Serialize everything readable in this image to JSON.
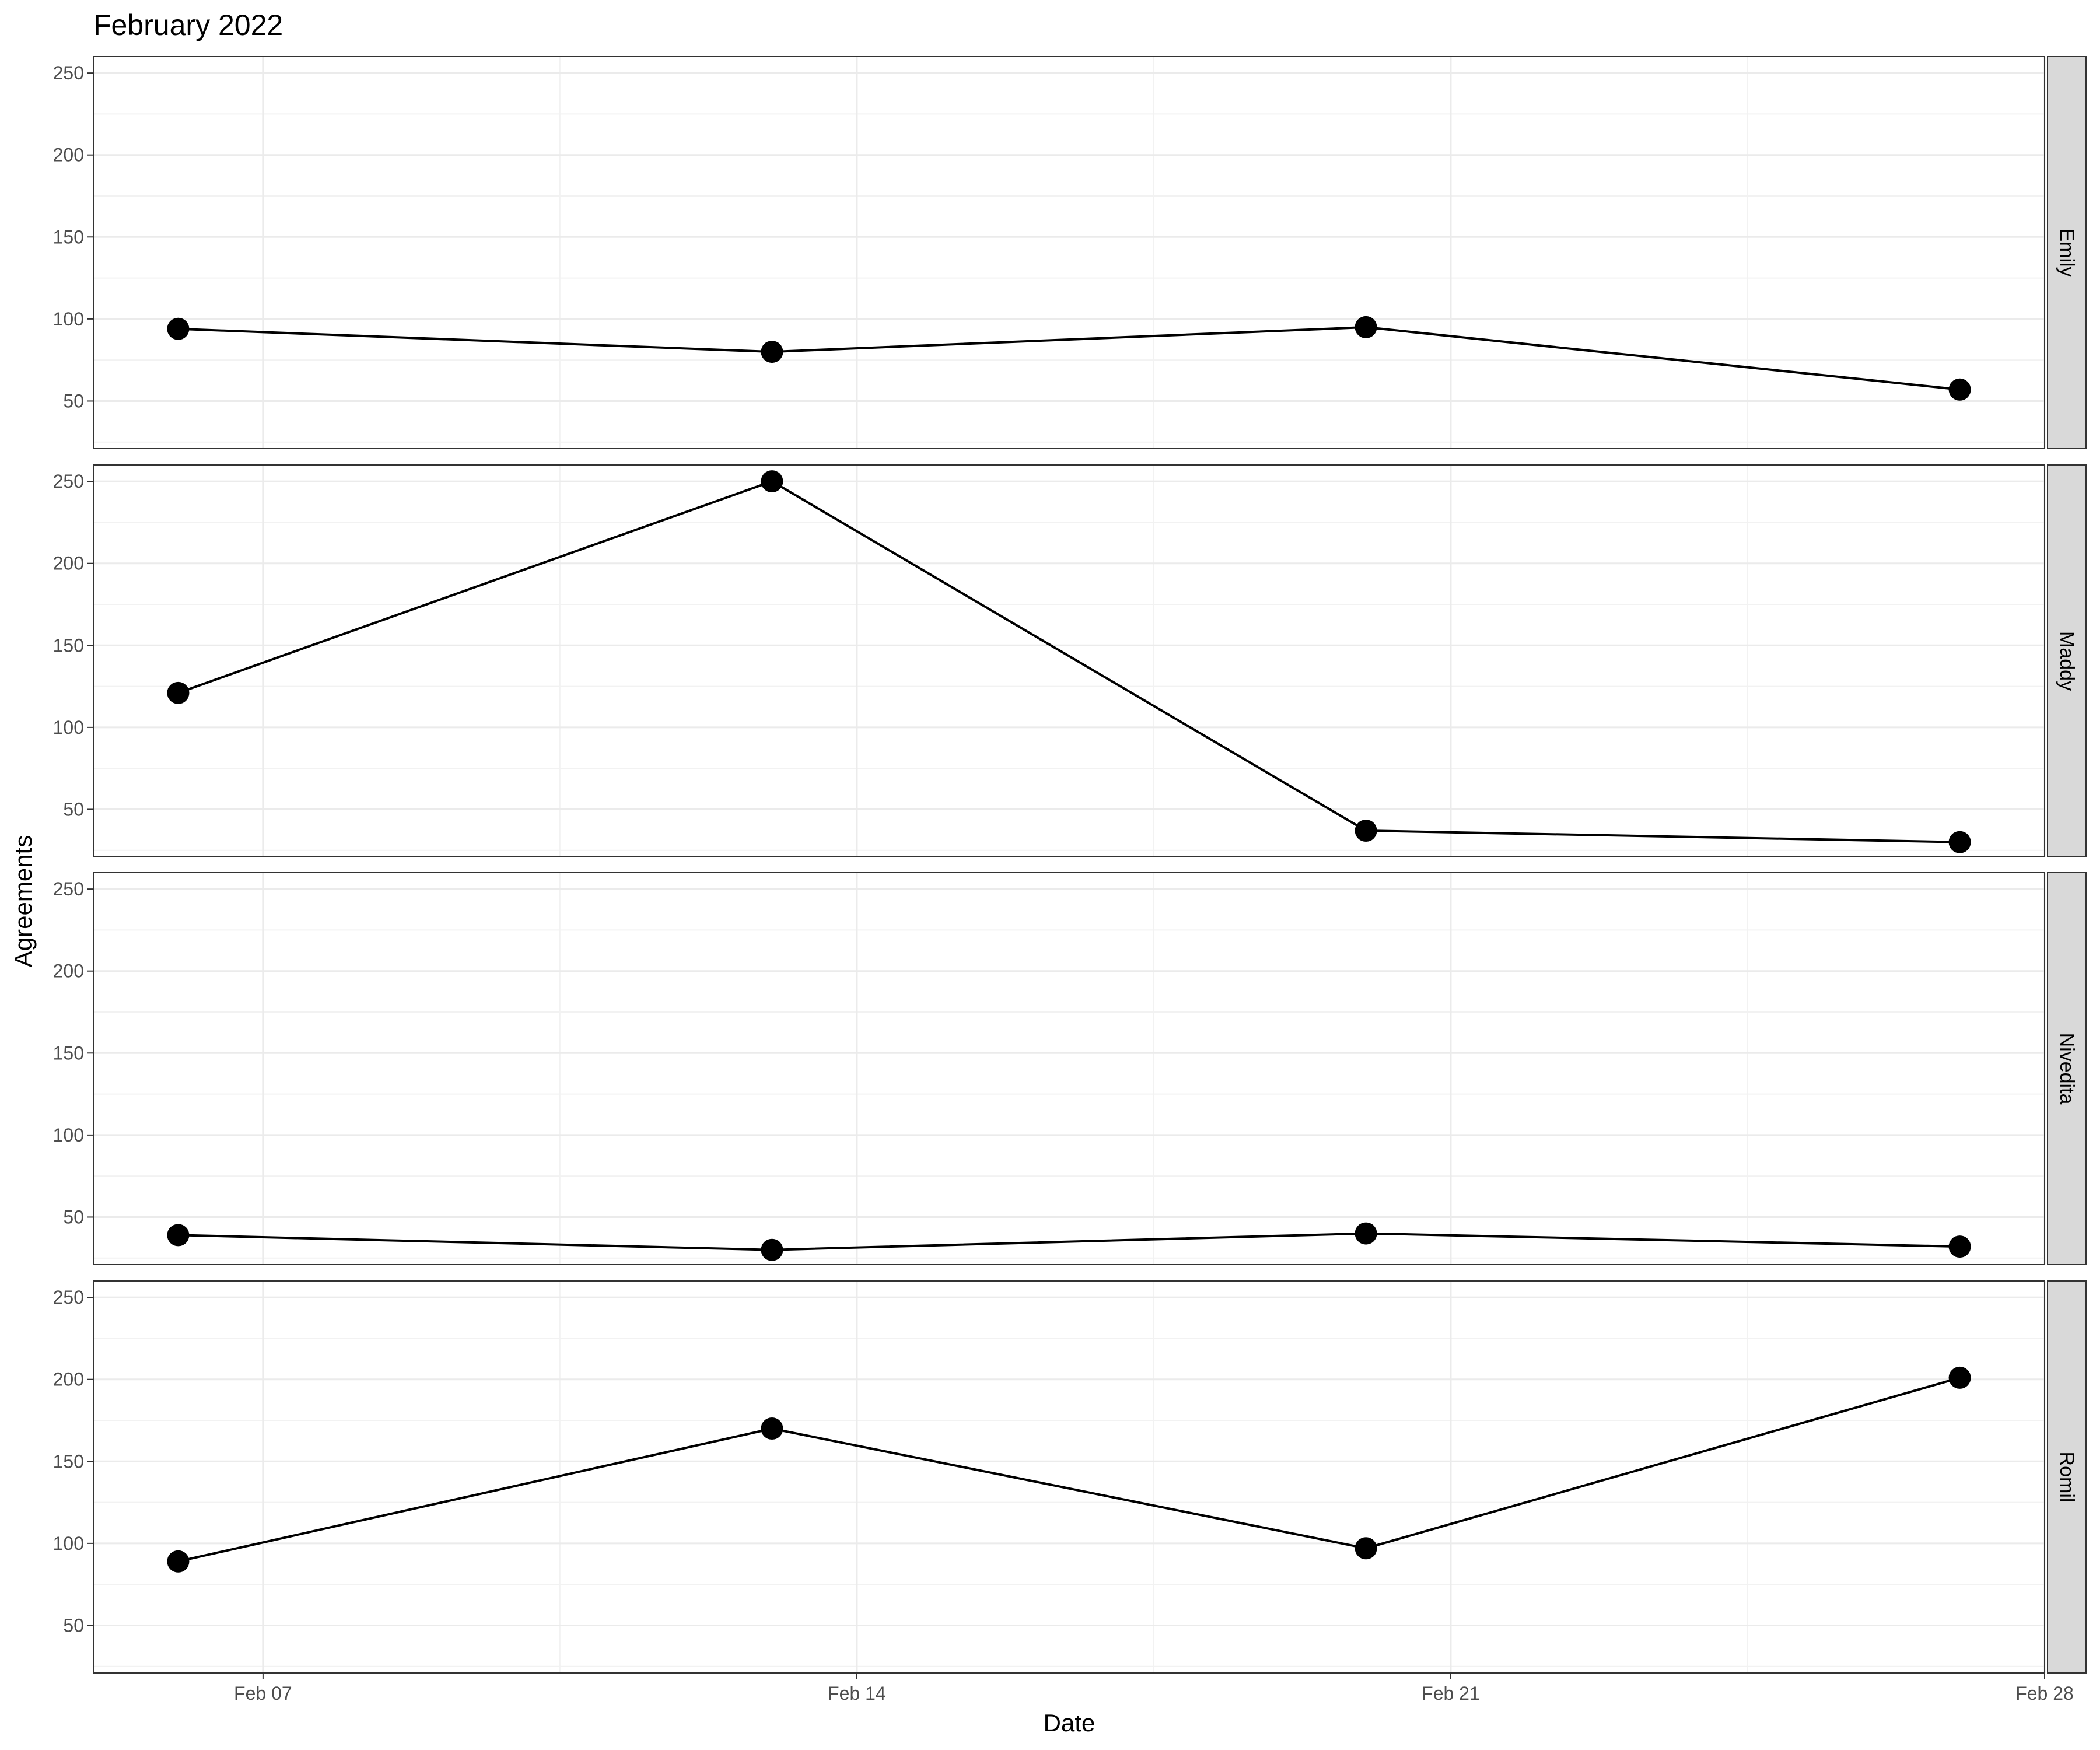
{
  "chart_data": {
    "type": "line",
    "title": "February 2022",
    "xlabel": "Date",
    "ylabel": "Agreements",
    "x": [
      "2022-02-06",
      "2022-02-13",
      "2022-02-20",
      "2022-02-27"
    ],
    "x_ticks": [
      {
        "date": "2022-02-07",
        "label": "Feb 07"
      },
      {
        "date": "2022-02-14",
        "label": "Feb 14"
      },
      {
        "date": "2022-02-21",
        "label": "Feb 21"
      },
      {
        "date": "2022-02-28",
        "label": "Feb 28"
      }
    ],
    "xlim": [
      "2022-02-05",
      "2022-02-28"
    ],
    "ylim": [
      21,
      260
    ],
    "y_ticks": [
      50,
      100,
      150,
      200,
      250
    ],
    "grid": true,
    "facets": [
      {
        "label": "Emily",
        "values": [
          94,
          80,
          95,
          57
        ]
      },
      {
        "label": "Maddy",
        "values": [
          121,
          250,
          37,
          30
        ]
      },
      {
        "label": "Nivedita",
        "values": [
          39,
          30,
          40,
          32
        ]
      },
      {
        "label": "Romil",
        "values": [
          89,
          170,
          97,
          201
        ]
      }
    ],
    "colors": {
      "line": "#000000",
      "point": "#000000",
      "panel_border": "#333333",
      "strip_fill": "#d9d9d9",
      "grid_major": "#ebebeb",
      "grid_minor": "#f2f2f2",
      "tick_text": "#4d4d4d"
    }
  }
}
